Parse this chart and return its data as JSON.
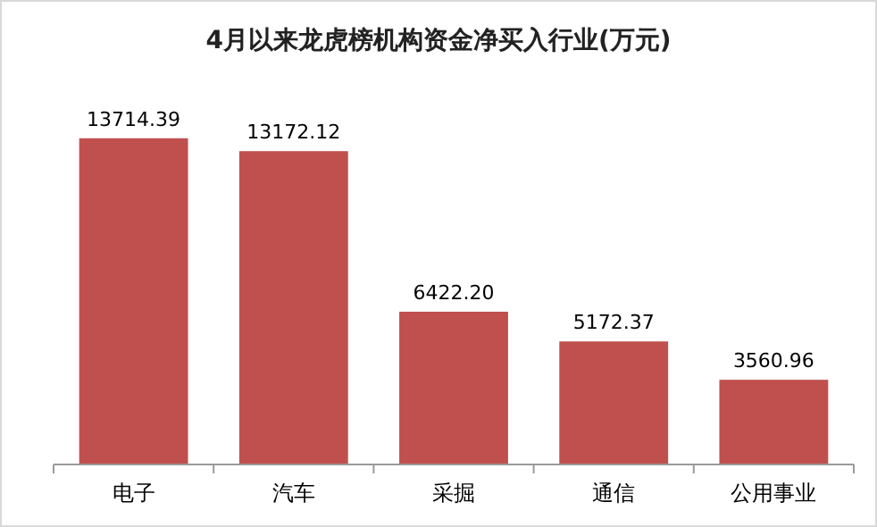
{
  "chart_data": {
    "type": "bar",
    "title": "4月以来龙虎榜机构资金净买入行业(万元)",
    "categories": [
      "电子",
      "汽车",
      "采掘",
      "通信",
      "公用事业"
    ],
    "values": [
      13714.39,
      13172.12,
      6422.2,
      5172.37,
      3560.96
    ],
    "value_labels": [
      "13714.39",
      "13172.12",
      "6422.20",
      "5172.37",
      "3560.96"
    ],
    "color": "#c0504d"
  }
}
